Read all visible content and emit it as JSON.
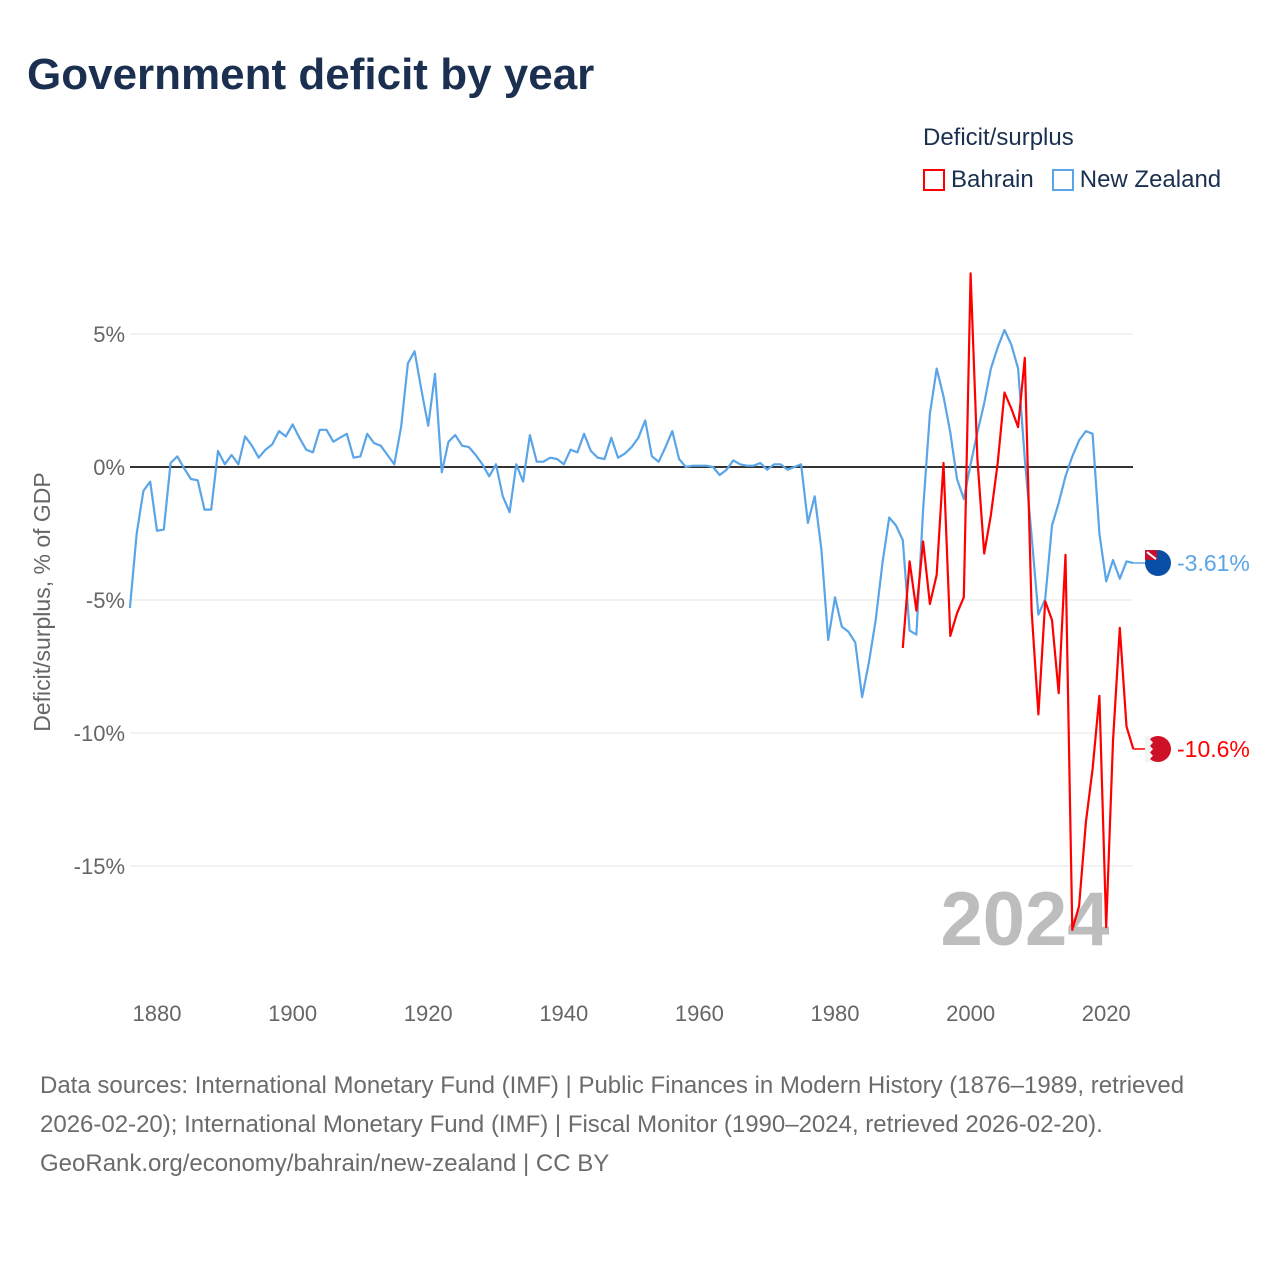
{
  "title": "Government deficit by year",
  "legend": {
    "title": "Deficit/surplus",
    "items": [
      {
        "name": "Bahrain",
        "color": "#ff0000"
      },
      {
        "name": "New Zealand",
        "color": "#5aa5e8"
      }
    ]
  },
  "chart_data": {
    "type": "line",
    "title": "Government deficit by year",
    "xlabel": "",
    "ylabel": "Deficit/surplus, % of GDP",
    "xlim": [
      1876,
      2024
    ],
    "ylim": [
      -18,
      7.5
    ],
    "x_ticks": [
      "1880",
      "1900",
      "1920",
      "1940",
      "1960",
      "1980",
      "2000",
      "2020"
    ],
    "y_ticks": [
      {
        "value": 5,
        "label": "5%"
      },
      {
        "value": 0,
        "label": "0%"
      },
      {
        "value": -5,
        "label": "-5%"
      },
      {
        "value": -10,
        "label": "-10%"
      },
      {
        "value": -15,
        "label": "-15%"
      }
    ],
    "year_watermark": "2024",
    "series": [
      {
        "name": "New Zealand",
        "color": "#5aa5e8",
        "start_year": 1876,
        "end_label": "-3.61%",
        "values": [
          -5.3,
          -2.5,
          -0.9,
          -0.55,
          -2.4,
          -2.35,
          0.15,
          0.4,
          -0.05,
          -0.45,
          -0.5,
          -1.6,
          -1.6,
          0.6,
          0.1,
          0.45,
          0.1,
          1.15,
          0.8,
          0.35,
          0.65,
          0.85,
          1.35,
          1.15,
          1.6,
          1.1,
          0.65,
          0.55,
          1.4,
          1.4,
          0.95,
          1.1,
          1.25,
          0.35,
          0.4,
          1.25,
          0.9,
          0.8,
          0.45,
          0.1,
          1.5,
          3.9,
          4.35,
          2.9,
          1.55,
          3.5,
          -0.2,
          0.95,
          1.2,
          0.8,
          0.75,
          0.45,
          0.1,
          -0.35,
          0.1,
          -1.1,
          -1.7,
          0.1,
          -0.55,
          1.2,
          0.2,
          0.2,
          0.35,
          0.3,
          0.1,
          0.65,
          0.55,
          1.25,
          0.6,
          0.35,
          0.3,
          1.1,
          0.35,
          0.5,
          0.75,
          1.1,
          1.75,
          0.4,
          0.2,
          0.75,
          1.35,
          0.3,
          0.0,
          0.05,
          0.05,
          0.05,
          0.0,
          -0.3,
          -0.1,
          0.25,
          0.1,
          0.05,
          0.05,
          0.15,
          -0.1,
          0.1,
          0.1,
          -0.1,
          0.0,
          0.1,
          -2.1,
          -1.1,
          -3.1,
          -6.5,
          -4.9,
          -6.0,
          -6.2,
          -6.6,
          -8.65,
          -7.35,
          -5.75,
          -3.6,
          -1.9,
          -2.2,
          -2.75,
          -6.15,
          -6.3,
          -1.6,
          2.0,
          3.7,
          2.65,
          1.3,
          -0.45,
          -1.2,
          0.1,
          1.3,
          2.4,
          3.7,
          4.5,
          5.15,
          4.6,
          3.7,
          0.3,
          -2.6,
          -5.55,
          -4.97,
          -2.2,
          -1.35,
          -0.35,
          0.4,
          1.0,
          1.35,
          1.25,
          -2.5,
          -4.3,
          -3.5,
          -4.2,
          -3.55,
          -3.61
        ]
      },
      {
        "name": "Bahrain",
        "color": "#ff0000",
        "start_year": 1990,
        "end_label": "-10.6%",
        "values": [
          -6.8,
          -3.55,
          -5.4,
          -2.8,
          -5.15,
          -4.05,
          0.15,
          -6.35,
          -5.5,
          -4.9,
          7.28,
          0.3,
          -3.25,
          -1.8,
          0.15,
          2.8,
          2.2,
          1.5,
          4.1,
          -5.4,
          -9.3,
          -5.05,
          -5.75,
          -8.5,
          -3.3,
          -17.4,
          -16.5,
          -13.35,
          -11.35,
          -8.6,
          -17.3,
          -10.3,
          -6.05,
          -9.75,
          -10.6
        ]
      }
    ]
  },
  "footer": {
    "sources": "Data sources: International Monetary Fund (IMF) | Public Finances in Modern History (1876–1989, retrieved 2026-02-20); International Monetary Fund (IMF) | Fiscal Monitor (1990–2024, retrieved 2026-02-20).",
    "credit": "GeoRank.org/economy/bahrain/new-zealand | CC BY"
  }
}
